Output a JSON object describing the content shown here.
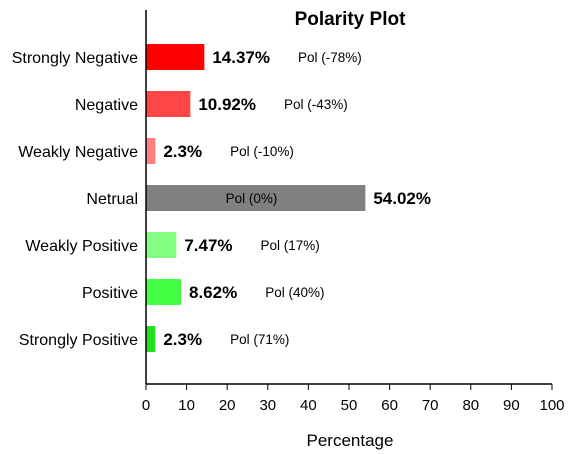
{
  "chart_data": {
    "type": "bar",
    "orientation": "horizontal",
    "title": "Polarity Plot",
    "xlabel": "Percentage",
    "ylabel": "",
    "xlim": [
      0,
      100
    ],
    "xticks": [
      0,
      10,
      20,
      30,
      40,
      50,
      60,
      70,
      80,
      90,
      100
    ],
    "grid": false,
    "categories": [
      "Strongly Negative",
      "Negative",
      "Weakly Negative",
      "Netrual",
      "Weakly Positive",
      "Positive",
      "Strongly Positive"
    ],
    "values": [
      14.37,
      10.92,
      2.3,
      54.02,
      7.47,
      8.62,
      2.3
    ],
    "value_labels": [
      "14.37%",
      "10.92%",
      "2.3%",
      "54.02%",
      "7.47%",
      "8.62%",
      "2.3%"
    ],
    "pol_labels": [
      "Pol (-78%)",
      "Pol (-43%)",
      "Pol (-10%)",
      "Pol (0%)",
      "Pol (17%)",
      "Pol (40%)",
      "Pol (71%)"
    ],
    "colors": [
      "#ff0000",
      "#ff4646",
      "#ff7e7e",
      "#808080",
      "#82ff82",
      "#44ff44",
      "#22e022"
    ]
  }
}
